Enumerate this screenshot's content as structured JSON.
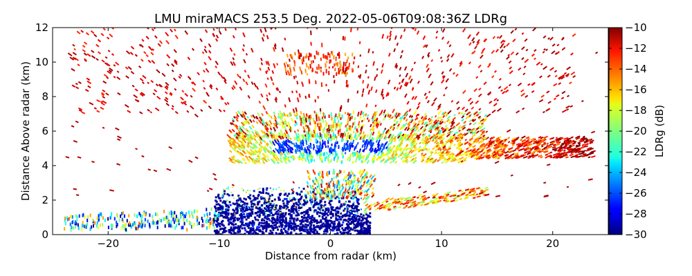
{
  "chart_data": {
    "type": "heatmap",
    "title": "LMU miraMACS 253.5 Deg. 2022-05-06T09:08:36Z  LDRg",
    "xlabel": "Distance from radar (km)",
    "ylabel": "Distance Above radar  (km)",
    "xlim": [
      -25,
      25
    ],
    "ylim": [
      0,
      12
    ],
    "xticks": [
      -20,
      -10,
      0,
      10,
      20
    ],
    "xtick_labels": [
      "−20",
      "−10",
      "0",
      "10",
      "20"
    ],
    "yticks": [
      0,
      2,
      4,
      6,
      8,
      10,
      12
    ],
    "ytick_labels": [
      "0",
      "2",
      "4",
      "6",
      "8",
      "10",
      "12"
    ],
    "colorbar": {
      "label": "LDRg (dB)",
      "range": [
        -30,
        -10
      ],
      "colormap": "jet",
      "ticks": [
        -30,
        -28,
        -26,
        -24,
        -22,
        -20,
        -18,
        -16,
        -14,
        -12,
        -10
      ],
      "tick_labels": [
        "−30",
        "−28",
        "−26",
        "−24",
        "−22",
        "−20",
        "−18",
        "−16",
        "−14",
        "−12",
        "−10"
      ]
    },
    "regions": [
      {
        "name": "dense low-LDR echo near radar",
        "x_range": [
          -10.5,
          3.5
        ],
        "z_range": [
          0,
          3.0
        ],
        "ldr_db": -29.5
      },
      {
        "name": "melting-layer band",
        "x_range": [
          -9,
          23.5
        ],
        "z_range": [
          4.0,
          5.5
        ],
        "ldr_db_range": [
          -28,
          -12
        ],
        "core_ldr_db": -28
      },
      {
        "name": "upper cloud, mixed LDR",
        "x_range": [
          -9,
          14
        ],
        "z_range": [
          5.5,
          7.0
        ],
        "ldr_db_range": [
          -22,
          -10
        ]
      },
      {
        "name": "sparse high-LDR returns aloft",
        "x_range": [
          -23,
          22
        ],
        "z_range": [
          7,
          12
        ],
        "ldr_db": -10.5
      },
      {
        "name": "low-level line of returns",
        "x_range": [
          -24,
          -10
        ],
        "z_range": [
          0.3,
          2.0
        ],
        "ldr_db_range": [
          -30,
          -14
        ]
      }
    ]
  }
}
